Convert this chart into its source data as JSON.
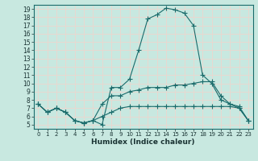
{
  "xlabel": "Humidex (Indice chaleur)",
  "bg_color": "#c8e8e0",
  "grid_color": "#e8d8d0",
  "line_color": "#1a6b6b",
  "xlim": [
    -0.5,
    23.5
  ],
  "ylim": [
    4.5,
    19.5
  ],
  "xticks": [
    0,
    1,
    2,
    3,
    4,
    5,
    6,
    7,
    8,
    9,
    10,
    11,
    12,
    13,
    14,
    15,
    16,
    17,
    18,
    19,
    20,
    21,
    22,
    23
  ],
  "yticks": [
    5,
    6,
    7,
    8,
    9,
    10,
    11,
    12,
    13,
    14,
    15,
    16,
    17,
    18,
    19
  ],
  "line1_x": [
    0,
    1,
    2,
    3,
    4,
    5,
    6,
    7,
    8,
    9,
    10,
    11,
    12,
    13,
    14,
    15,
    16,
    17,
    18,
    19,
    20,
    21,
    22,
    23
  ],
  "line1_y": [
    7.5,
    6.5,
    7.0,
    6.5,
    5.5,
    5.2,
    5.5,
    5.0,
    9.5,
    9.5,
    10.5,
    14.0,
    17.8,
    18.3,
    19.1,
    18.9,
    18.5,
    17.0,
    11.0,
    10.0,
    8.0,
    7.5,
    7.0,
    5.5
  ],
  "line2_x": [
    0,
    1,
    2,
    3,
    4,
    5,
    6,
    7,
    8,
    9,
    10,
    11,
    12,
    13,
    14,
    15,
    16,
    17,
    18,
    19,
    20,
    21,
    22,
    23
  ],
  "line2_y": [
    7.5,
    6.5,
    7.0,
    6.5,
    5.5,
    5.2,
    5.5,
    7.5,
    8.5,
    8.5,
    9.0,
    9.2,
    9.5,
    9.5,
    9.5,
    9.8,
    9.8,
    10.0,
    10.2,
    10.2,
    8.5,
    7.5,
    7.2,
    5.5
  ],
  "line3_x": [
    0,
    1,
    2,
    3,
    4,
    5,
    6,
    7,
    8,
    9,
    10,
    11,
    12,
    13,
    14,
    15,
    16,
    17,
    18,
    19,
    20,
    21,
    22,
    23
  ],
  "line3_y": [
    7.5,
    6.5,
    7.0,
    6.5,
    5.5,
    5.2,
    5.5,
    6.0,
    6.5,
    7.0,
    7.2,
    7.2,
    7.2,
    7.2,
    7.2,
    7.2,
    7.2,
    7.2,
    7.2,
    7.2,
    7.2,
    7.2,
    7.0,
    5.5
  ]
}
